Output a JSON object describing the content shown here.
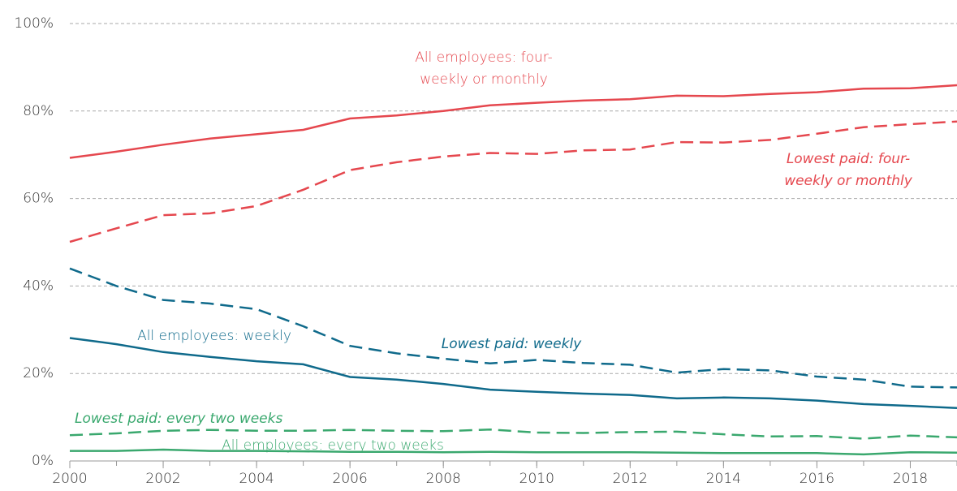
{
  "chart_data": {
    "type": "line",
    "x": [
      2000,
      2001,
      2002,
      2003,
      2004,
      2005,
      2006,
      2007,
      2008,
      2009,
      2010,
      2011,
      2012,
      2013,
      2014,
      2015,
      2016,
      2017,
      2018,
      2019
    ],
    "xlim": [
      2000,
      2019
    ],
    "xticks": [
      2000,
      2002,
      2004,
      2006,
      2008,
      2010,
      2012,
      2014,
      2016,
      2018
    ],
    "ylim": [
      0,
      100
    ],
    "yticks": [
      {
        "value": 0,
        "label": "0%"
      },
      {
        "value": 20,
        "label": "20%"
      },
      {
        "value": 40,
        "label": "40%"
      },
      {
        "value": 60,
        "label": "60%"
      },
      {
        "value": 80,
        "label": "80%"
      },
      {
        "value": 100,
        "label": "100%"
      }
    ],
    "grid": true,
    "series": [
      {
        "label_lines": [
          "All employees: four-",
          "weekly or monthly"
        ],
        "color": "#e5474e",
        "dashed": false,
        "values": [
          69.3,
          70.7,
          72.3,
          73.7,
          74.7,
          75.7,
          78.3,
          79.0,
          80.0,
          81.3,
          81.9,
          82.4,
          82.7,
          83.5,
          83.4,
          83.9,
          84.3,
          85.1,
          85.2,
          85.9
        ]
      },
      {
        "label_lines": [
          "Lowest paid: four-",
          "weekly or monthly"
        ],
        "color": "#e5474e",
        "dashed": true,
        "values": [
          50.1,
          53.2,
          56.2,
          56.6,
          58.3,
          62.0,
          66.5,
          68.3,
          69.6,
          70.4,
          70.2,
          71.0,
          71.2,
          72.9,
          72.8,
          73.4,
          74.8,
          76.3,
          77.0,
          77.6
        ]
      },
      {
        "label_lines": [
          "Lowest paid: weekly"
        ],
        "color": "#0f6a8b",
        "dashed": true,
        "values": [
          44.0,
          40.0,
          36.8,
          36.0,
          34.7,
          30.8,
          26.3,
          24.6,
          23.4,
          22.3,
          23.1,
          22.4,
          22.0,
          20.2,
          21.0,
          20.7,
          19.3,
          18.6,
          17.0,
          16.8
        ]
      },
      {
        "label_lines": [
          "All employees: weekly"
        ],
        "color": "#0f6a8b",
        "dashed": false,
        "values": [
          28.1,
          26.7,
          24.9,
          23.8,
          22.8,
          22.1,
          19.2,
          18.6,
          17.6,
          16.3,
          15.8,
          15.4,
          15.1,
          14.3,
          14.5,
          14.3,
          13.8,
          13.0,
          12.6,
          12.1
        ]
      },
      {
        "label_lines": [
          "Lowest paid: every two weeks"
        ],
        "color": "#3aa86e",
        "dashed": true,
        "values": [
          5.9,
          6.3,
          6.9,
          7.1,
          6.9,
          6.9,
          7.1,
          6.9,
          6.8,
          7.2,
          6.5,
          6.4,
          6.6,
          6.7,
          6.1,
          5.6,
          5.7,
          5.1,
          5.8,
          5.4
        ]
      },
      {
        "label_lines": [
          "All employees: every two weeks"
        ],
        "color": "#3aa86e",
        "dashed": false,
        "values": [
          2.3,
          2.3,
          2.6,
          2.3,
          2.3,
          2.2,
          2.1,
          2.1,
          2.0,
          2.1,
          2.0,
          2.0,
          2.0,
          1.9,
          1.8,
          1.8,
          1.8,
          1.5,
          2.0,
          1.9
        ]
      }
    ]
  }
}
